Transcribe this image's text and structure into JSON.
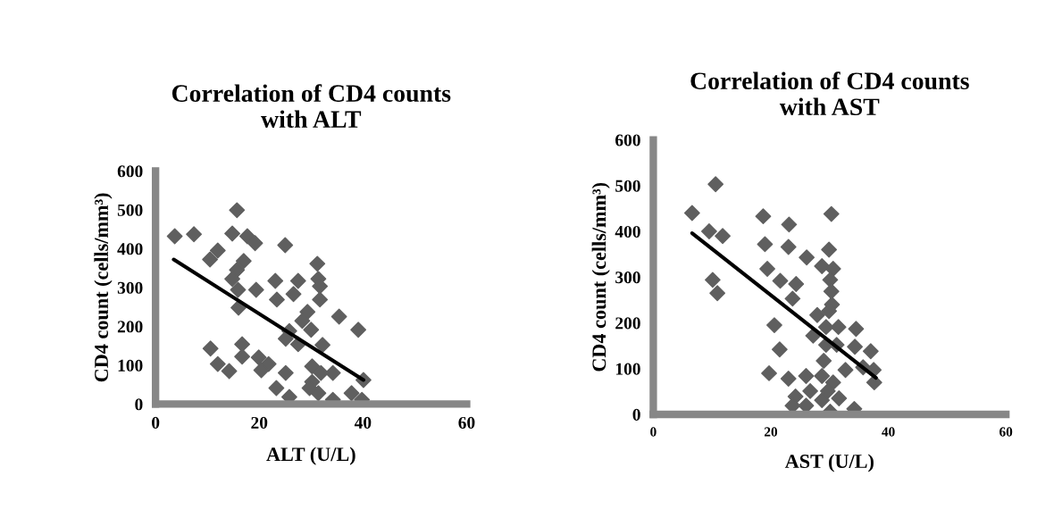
{
  "chart_data": [
    {
      "type": "scatter",
      "title": "Correlation of CD4 counts\nwith ALT",
      "xlabel": "ALT (U/L)",
      "ylabel": "CD4 count (cells/mm³)",
      "xlim": [
        0,
        60
      ],
      "xticks": [
        0,
        20,
        40,
        60
      ],
      "ylim": [
        0,
        600
      ],
      "yticks": [
        0,
        100,
        200,
        300,
        400,
        500,
        600
      ],
      "grid": false,
      "legend": false,
      "marker": "diamond",
      "series": [
        {
          "color": "#5f5f5f",
          "x": [
            3.7,
            7.4,
            15.7,
            14.8,
            17.7,
            19.2,
            25,
            12,
            10.5,
            17,
            15.7,
            14.8,
            15.9,
            19.4,
            16,
            23.1,
            23.4,
            27.5,
            26.6,
            31.2,
            31.4,
            31.7,
            31.7,
            29.3,
            28.3,
            30,
            35.4,
            39.1,
            25.8,
            25.1,
            27.5,
            32.2,
            10.6,
            16.7,
            12,
            14.2,
            16.7,
            19.9,
            21.8,
            20.4,
            25.1,
            30.2,
            34.2,
            40.1,
            23.3,
            25.8,
            30.2,
            31.4,
            29.7,
            34.2,
            37.8,
            39.8,
            31.9
          ],
          "values": [
            432,
            437,
            499,
            439,
            432,
            414,
            409,
            395,
            372,
            368,
            345,
            322,
            294,
            294,
            248,
            317,
            269,
            317,
            283,
            361,
            322,
            303,
            269,
            237,
            214,
            191,
            225,
            191,
            188,
            168,
            154,
            152,
            143,
            154,
            103,
            85,
            122,
            120,
            103,
            87,
            80,
            97,
            80,
            62,
            41,
            18,
            57,
            28,
            41,
            11,
            28,
            11,
            80
          ]
        },
        {
          "type": "line",
          "color": "#000000",
          "marker": "none",
          "x": [
            3.5,
            40.1
          ],
          "values": [
            372,
            62
          ]
        }
      ]
    },
    {
      "type": "scatter",
      "title": "Correlation of CD4 counts\nwith AST",
      "xlabel": "AST (U/L)",
      "ylabel": "CD4 count (cells/mm³)",
      "xlim": [
        0,
        60
      ],
      "xticks": [
        0,
        20,
        40,
        60
      ],
      "ylim": [
        0,
        600
      ],
      "yticks": [
        0,
        100,
        200,
        300,
        400,
        500,
        600
      ],
      "grid": false,
      "legend": false,
      "marker": "diamond",
      "series": [
        {
          "color": "#5f5f5f",
          "x": [
            10.6,
            6.6,
            9.5,
            11.8,
            10.1,
            10.9,
            18.7,
            23.1,
            30.3,
            19,
            23,
            29.9,
            26.1,
            19.4,
            21.6,
            24.3,
            28.7,
            30.6,
            30.1,
            23.7,
            30.3,
            30.4,
            27.9,
            29.9,
            20.6,
            21.5,
            27.2,
            29.4,
            31.5,
            34.5,
            29.4,
            34.3,
            37,
            31.2,
            35.7,
            37.5,
            37.6,
            19.7,
            23,
            26,
            29,
            32.7,
            28.7,
            30.6,
            24.2,
            26,
            23.7,
            28.7,
            30.1,
            31.6,
            34.2,
            26.7,
            29.7
          ],
          "values": [
            503,
            440,
            400,
            390,
            294,
            265,
            433,
            415,
            438,
            372,
            366,
            360,
            343,
            318,
            292,
            285,
            324,
            318,
            294,
            253,
            269,
            240,
            217,
            226,
            195,
            142,
            172,
            191,
            191,
            187,
            152,
            148,
            138,
            152,
            103,
            97,
            70,
            90,
            78,
            84,
            117,
            97,
            84,
            70,
            39,
            19,
            19,
            31,
            6,
            35,
            12,
            51,
            51
          ]
        },
        {
          "type": "line",
          "color": "#000000",
          "marker": "none",
          "x": [
            6.6,
            37.9
          ],
          "values": [
            396,
            80
          ]
        }
      ]
    }
  ]
}
